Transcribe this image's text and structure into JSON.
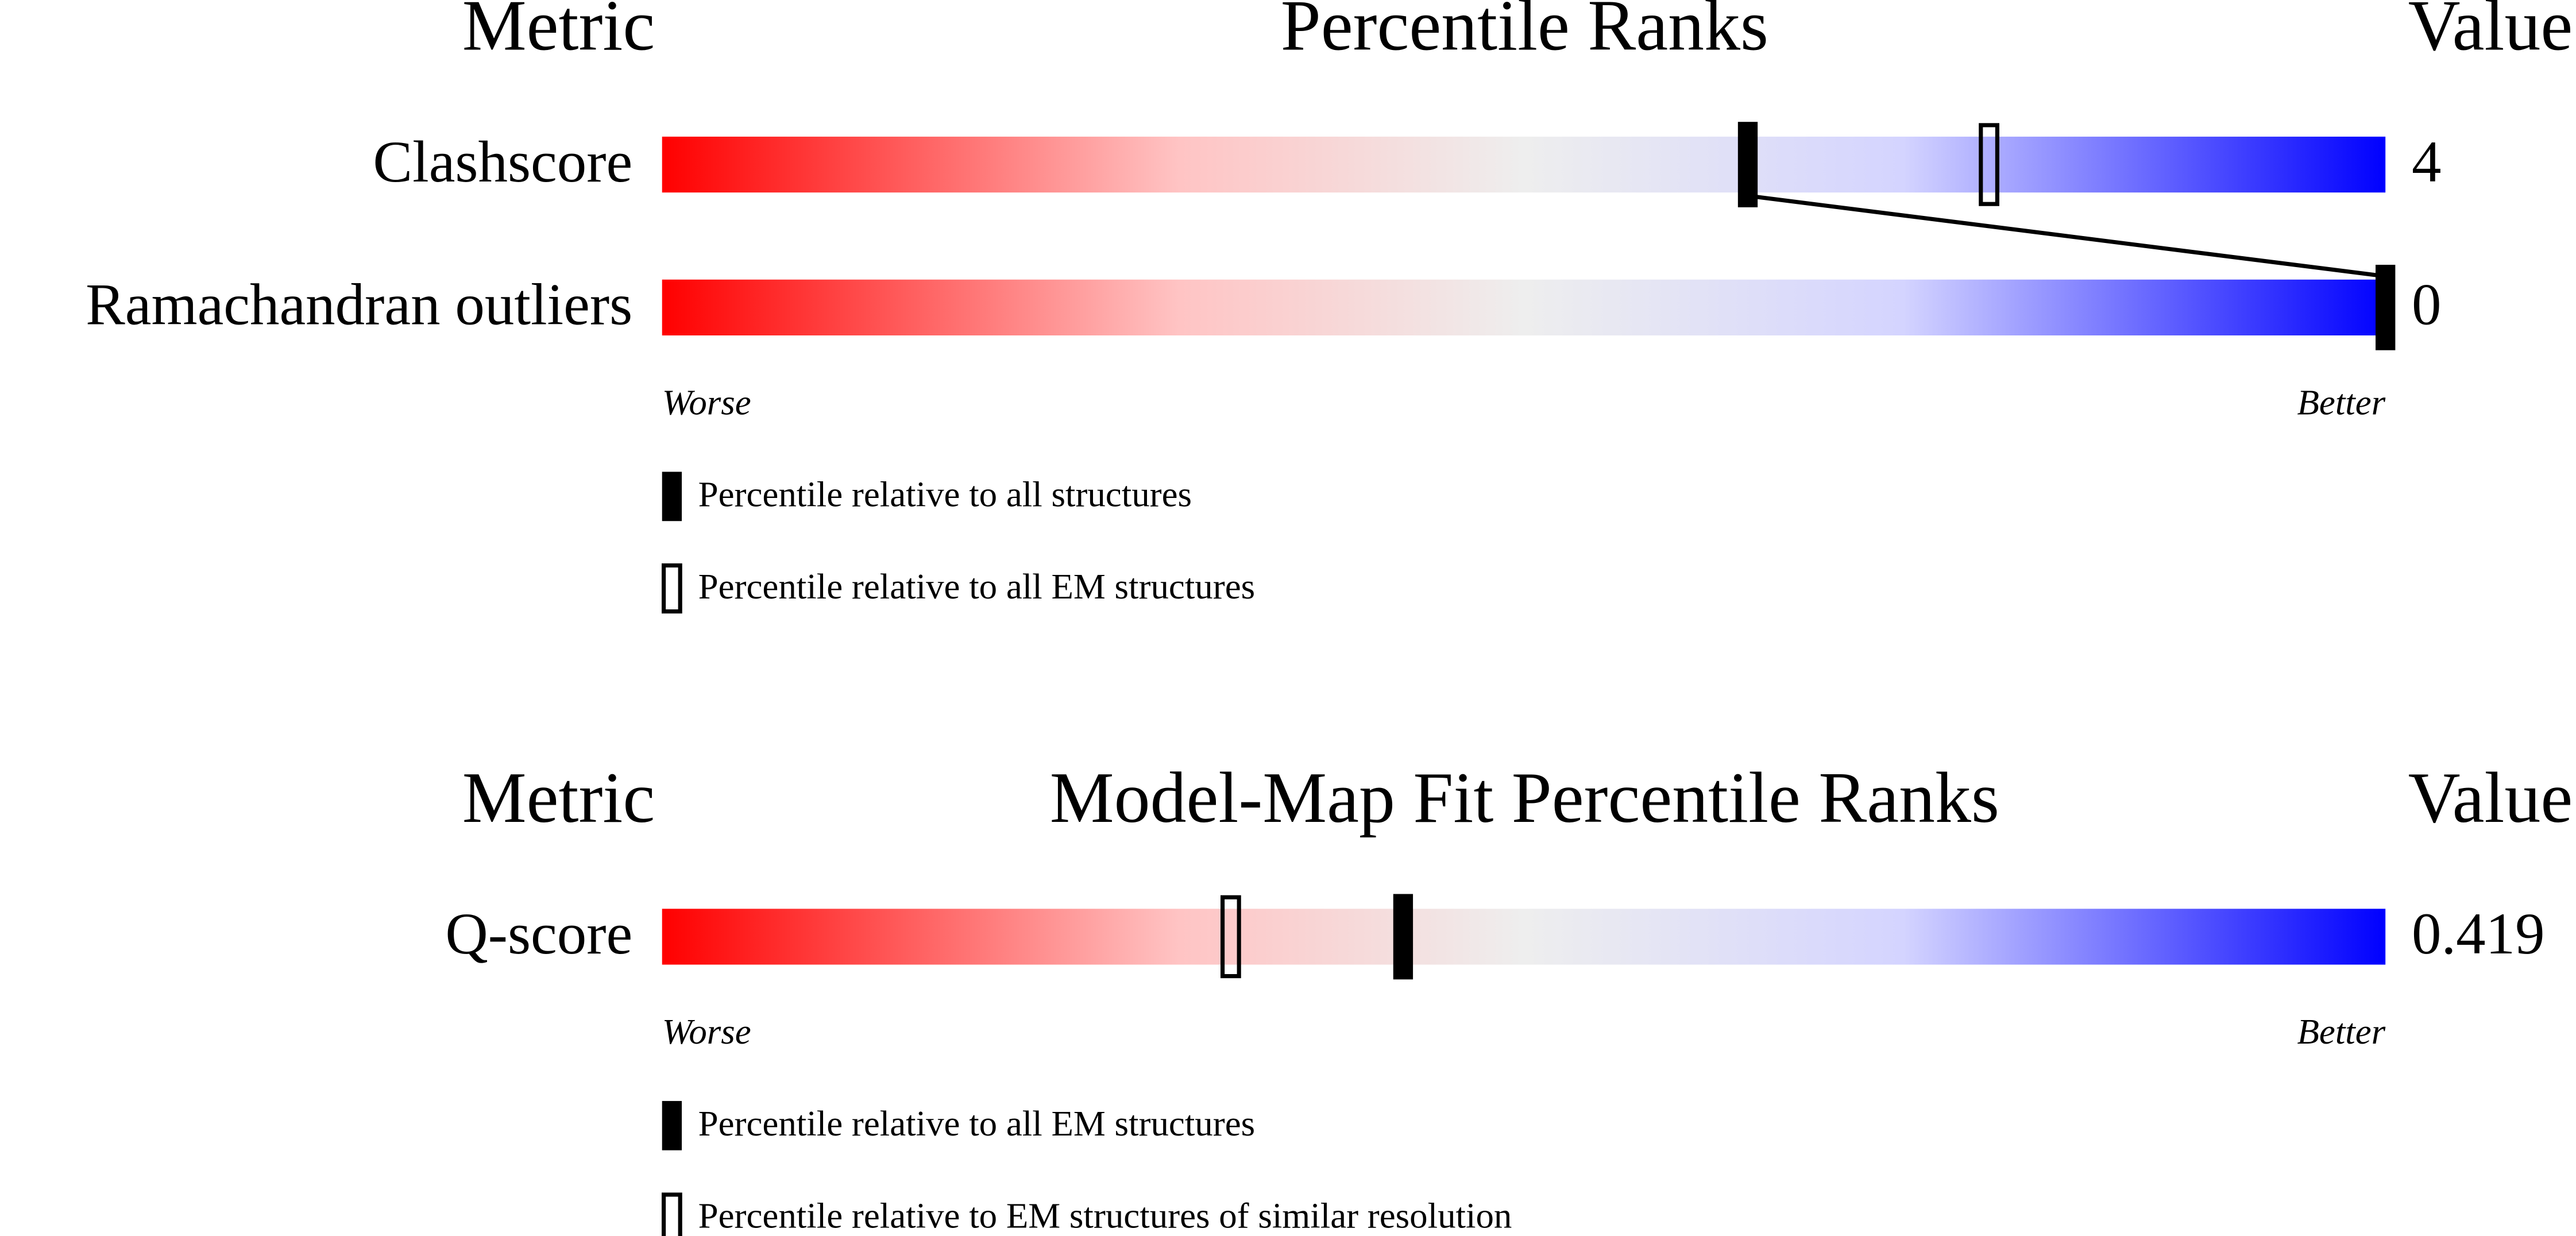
{
  "chart_data": [
    {
      "type": "percentile",
      "metric_header": "Metric",
      "title": "Percentile Ranks",
      "value_header": "Value",
      "categories": [
        "Clashscore",
        "Ramachandran outliers"
      ],
      "metric_values": [
        4,
        0
      ],
      "xlim": [
        0,
        100
      ],
      "worse_label": "Worse",
      "better_label": "Better",
      "series": [
        {
          "name": "Percentile relative to all structures",
          "style": "filled",
          "color": "#000000",
          "values": [
            63,
            100
          ]
        },
        {
          "name": "Percentile relative to all EM structures",
          "style": "outline",
          "color": "#000000",
          "values": [
            77,
            null
          ]
        }
      ]
    },
    {
      "type": "percentile",
      "metric_header": "Metric",
      "title": "Model-Map Fit Percentile Ranks",
      "value_header": "Value",
      "categories": [
        "Q-score"
      ],
      "metric_values": [
        0.419
      ],
      "xlim": [
        0,
        100
      ],
      "worse_label": "Worse",
      "better_label": "Better",
      "series": [
        {
          "name": "Percentile relative to all EM structures",
          "style": "filled",
          "color": "#000000",
          "values": [
            43
          ]
        },
        {
          "name": "Percentile relative to EM structures of similar resolution",
          "style": "outline",
          "color": "#000000",
          "values": [
            33
          ]
        }
      ]
    }
  ]
}
